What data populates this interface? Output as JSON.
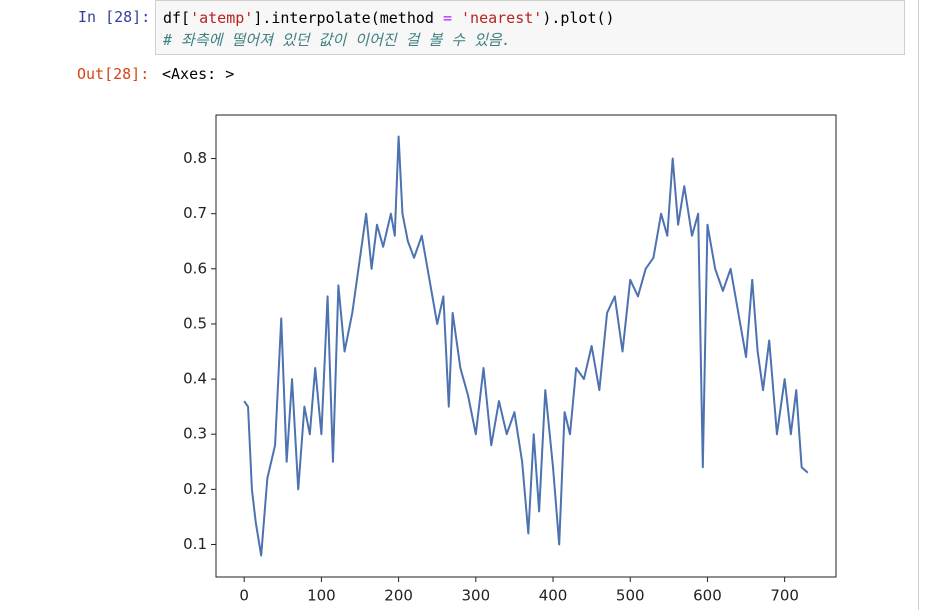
{
  "input": {
    "prompt": "In [28]:",
    "code": [
      "df[",
      "'atemp'",
      "].interpolate(method ",
      "= ",
      "'nearest'",
      ").plot()"
    ],
    "comment": "# 좌측에 떨어져 있던 값이 이어진 걸 볼 수 있음."
  },
  "output": {
    "prompt": "Out[28]:",
    "text": "<Axes: >"
  },
  "chart_data": {
    "type": "line",
    "color": "#4c72b0",
    "x": [
      0,
      5,
      10,
      15,
      22,
      30,
      40,
      48,
      55,
      62,
      70,
      78,
      85,
      92,
      100,
      108,
      115,
      122,
      130,
      140,
      150,
      158,
      165,
      172,
      180,
      190,
      195,
      200,
      205,
      212,
      220,
      230,
      240,
      250,
      258,
      265,
      270,
      280,
      290,
      300,
      310,
      320,
      330,
      340,
      350,
      360,
      368,
      375,
      382,
      390,
      400,
      408,
      415,
      422,
      430,
      440,
      450,
      460,
      470,
      480,
      490,
      500,
      510,
      520,
      530,
      540,
      548,
      555,
      562,
      570,
      580,
      588,
      594,
      600,
      610,
      620,
      630,
      640,
      650,
      658,
      665,
      672,
      680,
      690,
      700,
      708,
      715,
      722,
      730
    ],
    "values": [
      0.36,
      0.35,
      0.2,
      0.14,
      0.08,
      0.22,
      0.28,
      0.51,
      0.25,
      0.4,
      0.2,
      0.35,
      0.3,
      0.42,
      0.3,
      0.55,
      0.25,
      0.57,
      0.45,
      0.52,
      0.62,
      0.7,
      0.6,
      0.68,
      0.64,
      0.7,
      0.66,
      0.84,
      0.7,
      0.65,
      0.62,
      0.66,
      0.58,
      0.5,
      0.55,
      0.35,
      0.52,
      0.42,
      0.37,
      0.3,
      0.42,
      0.28,
      0.36,
      0.3,
      0.34,
      0.25,
      0.12,
      0.3,
      0.16,
      0.38,
      0.24,
      0.1,
      0.34,
      0.3,
      0.42,
      0.4,
      0.46,
      0.38,
      0.52,
      0.55,
      0.45,
      0.58,
      0.55,
      0.6,
      0.62,
      0.7,
      0.66,
      0.8,
      0.68,
      0.75,
      0.66,
      0.7,
      0.24,
      0.68,
      0.6,
      0.56,
      0.6,
      0.52,
      0.44,
      0.58,
      0.45,
      0.38,
      0.47,
      0.3,
      0.4,
      0.3,
      0.38,
      0.24,
      0.23
    ],
    "xlim": [
      -36.5,
      766.5
    ],
    "ylim": [
      0.041,
      0.879
    ],
    "xticks": [
      0,
      100,
      200,
      300,
      400,
      500,
      600,
      700
    ],
    "yticks": [
      0.1,
      0.2,
      0.3,
      0.4,
      0.5,
      0.6,
      0.7,
      0.8
    ]
  }
}
